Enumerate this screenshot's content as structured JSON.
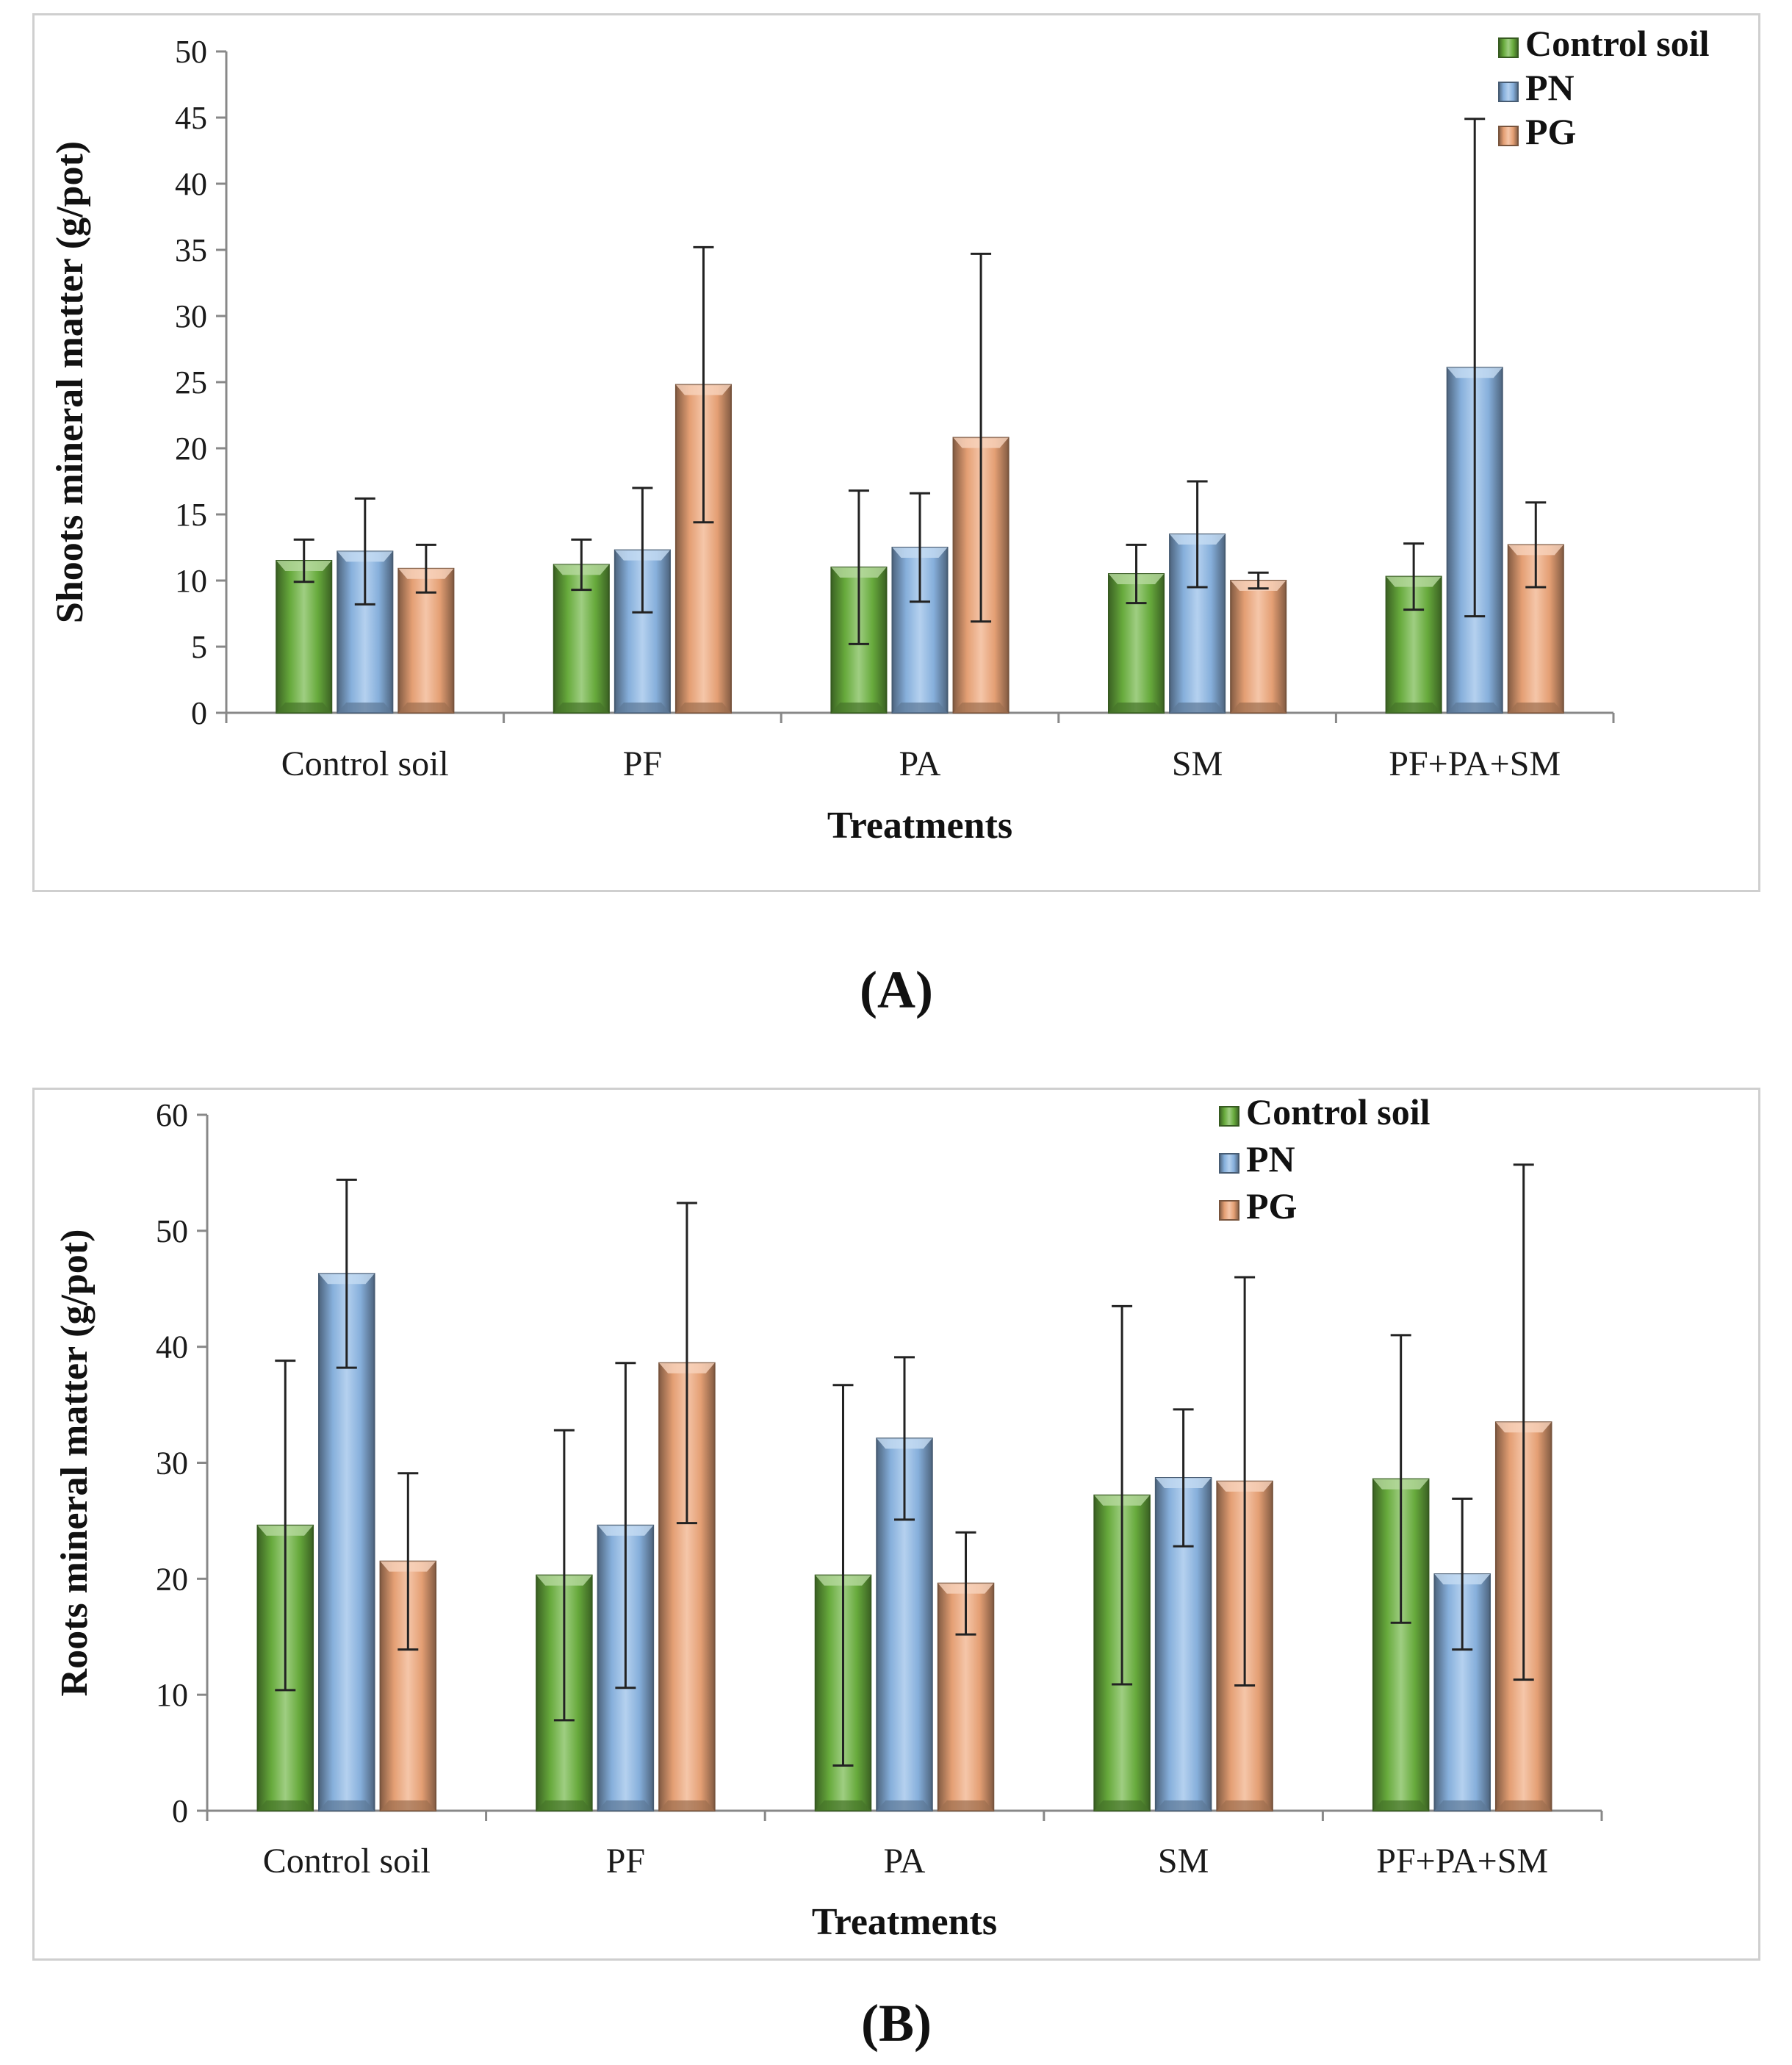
{
  "chart_data": [
    {
      "panel": "(A)",
      "type": "bar",
      "title": "",
      "xlabel": "Treatments",
      "ylabel": "Shoots mineral matter (g/pot)",
      "ylim": [
        0,
        50
      ],
      "yticks": [
        0,
        5,
        10,
        15,
        20,
        25,
        30,
        35,
        40,
        45,
        50
      ],
      "legend_position": "top-right",
      "categories": [
        "Control soil",
        "PF",
        "PA",
        "SM",
        "PF+PA+SM"
      ],
      "series": [
        {
          "name": "Control soil",
          "color": "#6cb33f",
          "values": [
            11.5,
            11.2,
            11.0,
            10.5,
            10.3
          ],
          "errors": [
            1.6,
            1.9,
            5.8,
            2.2,
            2.5
          ]
        },
        {
          "name": "PN",
          "color": "#8db8e6",
          "values": [
            12.2,
            12.3,
            12.5,
            13.5,
            26.1
          ],
          "errors": [
            4.0,
            4.7,
            4.1,
            4.0,
            18.8
          ]
        },
        {
          "name": "PG",
          "color": "#f0a77a",
          "values": [
            10.9,
            24.8,
            20.8,
            10.0,
            12.7
          ],
          "errors": [
            1.8,
            10.4,
            13.9,
            0.6,
            3.2
          ]
        }
      ]
    },
    {
      "panel": "(B)",
      "type": "bar",
      "title": "",
      "xlabel": "Treatments",
      "ylabel": "Roots mineral matter (g/pot)",
      "ylim": [
        0,
        60
      ],
      "yticks": [
        0,
        10,
        20,
        30,
        40,
        50,
        60
      ],
      "legend_position": "top-right",
      "categories": [
        "Control soil",
        "PF",
        "PA",
        "SM",
        "PF+PA+SM"
      ],
      "series": [
        {
          "name": "Control soil",
          "color": "#6cb33f",
          "values": [
            24.6,
            20.3,
            20.3,
            27.2,
            28.6
          ],
          "errors": [
            14.2,
            12.5,
            16.4,
            16.3,
            12.4
          ]
        },
        {
          "name": "PN",
          "color": "#8db8e6",
          "values": [
            46.3,
            24.6,
            32.1,
            28.7,
            20.4
          ],
          "errors": [
            8.1,
            14.0,
            7.0,
            5.9,
            6.5
          ]
        },
        {
          "name": "PG",
          "color": "#f0a77a",
          "values": [
            21.5,
            38.6,
            19.6,
            28.4,
            33.5
          ],
          "errors": [
            7.6,
            13.8,
            4.4,
            17.6,
            22.2
          ]
        }
      ]
    }
  ]
}
